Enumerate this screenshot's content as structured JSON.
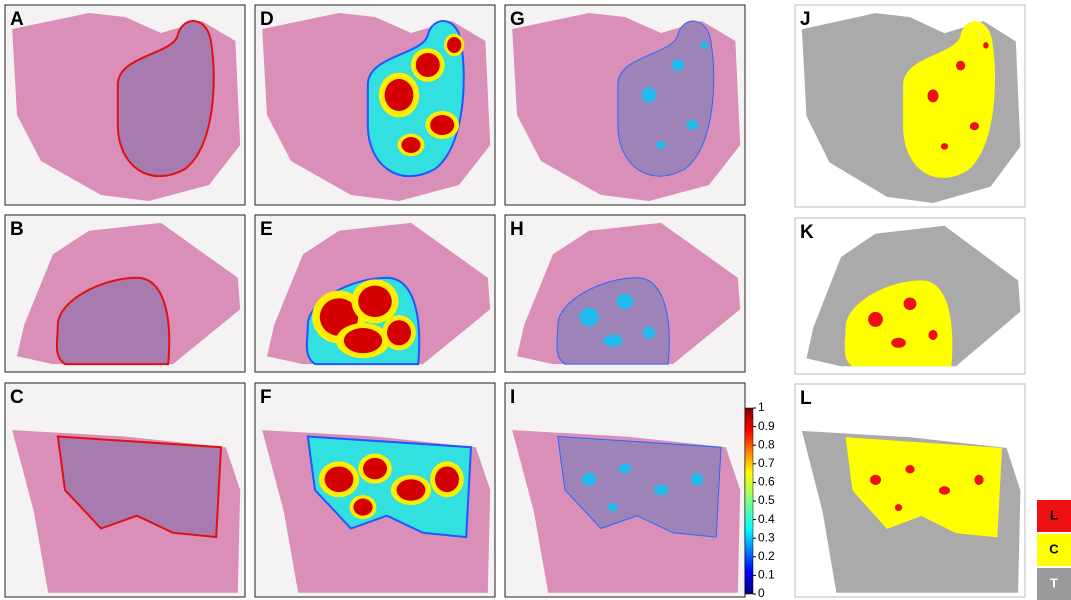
{
  "panels": [
    "A",
    "B",
    "C",
    "D",
    "E",
    "F",
    "G",
    "H",
    "I",
    "J",
    "K",
    "L"
  ],
  "colorbar": {
    "range": [
      0,
      1
    ],
    "ticks": [
      1,
      0.9,
      0.8,
      0.7,
      0.6,
      0.5,
      0.4,
      0.3,
      0.2,
      0.1,
      0
    ]
  },
  "legend": [
    {
      "label": "L",
      "color": "#ee1111"
    },
    {
      "label": "C",
      "color": "#ffff00"
    },
    {
      "label": "T",
      "color": "#9a9a9a"
    }
  ]
}
